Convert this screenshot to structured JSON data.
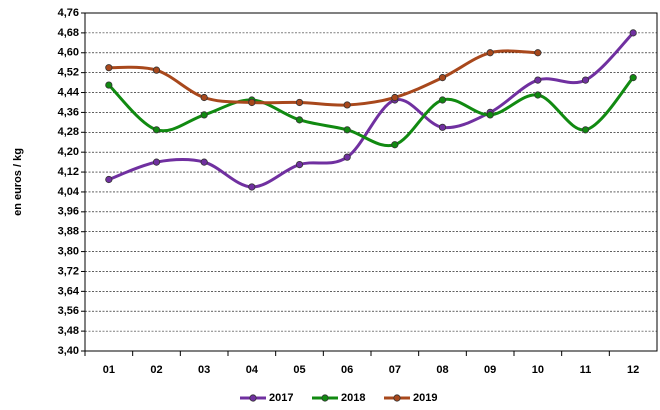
{
  "chart_data": {
    "type": "line",
    "y_label": "en euros / kg",
    "categories": [
      "01",
      "02",
      "03",
      "04",
      "05",
      "06",
      "07",
      "08",
      "09",
      "10",
      "11",
      "12"
    ],
    "series": [
      {
        "name": "2017",
        "color": "#7030a0",
        "values": [
          4.09,
          4.16,
          4.16,
          4.06,
          4.15,
          4.18,
          4.41,
          4.3,
          4.36,
          4.49,
          4.49,
          4.68
        ]
      },
      {
        "name": "2018",
        "color": "#118a11",
        "values": [
          4.47,
          4.29,
          4.35,
          4.41,
          4.33,
          4.29,
          4.23,
          4.41,
          4.35,
          4.43,
          4.29,
          4.5
        ]
      },
      {
        "name": "2019",
        "color": "#a8481c",
        "values": [
          4.54,
          4.53,
          4.42,
          4.4,
          4.4,
          4.39,
          4.42,
          4.5,
          4.6,
          4.6,
          null,
          null
        ]
      }
    ],
    "ylim": [
      3.4,
      4.76
    ],
    "yticks": [
      {
        "value": 3.4,
        "label": "3,40"
      },
      {
        "value": 3.48,
        "label": "3,48"
      },
      {
        "value": 3.56,
        "label": "3,56"
      },
      {
        "value": 3.64,
        "label": "3,64"
      },
      {
        "value": 3.72,
        "label": "3,72"
      },
      {
        "value": 3.8,
        "label": "3,80"
      },
      {
        "value": 3.88,
        "label": "3,88"
      },
      {
        "value": 3.96,
        "label": "3,96"
      },
      {
        "value": 4.04,
        "label": "4,04"
      },
      {
        "value": 4.12,
        "label": "4,12"
      },
      {
        "value": 4.2,
        "label": "4,20"
      },
      {
        "value": 4.28,
        "label": "4,28"
      },
      {
        "value": 4.36,
        "label": "4,36"
      },
      {
        "value": 4.44,
        "label": "4,44"
      },
      {
        "value": 4.52,
        "label": "4,52"
      },
      {
        "value": 4.6,
        "label": "4,60"
      },
      {
        "value": 4.68,
        "label": "4,68"
      },
      {
        "value": 4.76,
        "label": "4,76"
      }
    ],
    "grid": true,
    "smooth": true,
    "legend": "bottom"
  }
}
